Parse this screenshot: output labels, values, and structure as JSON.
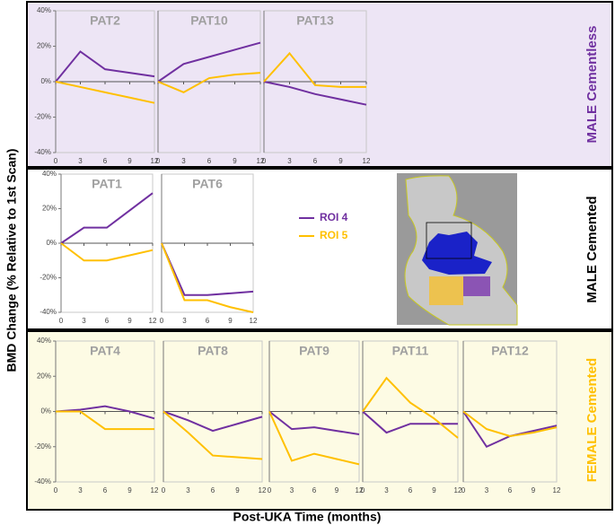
{
  "y_label": "BMD Change (% Relative to 1st Scan)",
  "x_label": "Post-UKA Time (months)",
  "sections": [
    {
      "label": "MALE Cementless",
      "color": "#7030a0"
    },
    {
      "label": "MALE Cemented",
      "color": "#000000"
    },
    {
      "label": "FEMALE Cemented",
      "color": "#ffc000"
    }
  ],
  "chart_data": [
    {
      "type": "line",
      "title": "PAT2",
      "x": [
        0,
        3,
        6,
        9,
        12
      ],
      "xlim": [
        0,
        12
      ],
      "xticks": [
        0,
        3,
        6,
        9,
        12
      ],
      "ylim": [
        -40,
        40
      ],
      "yticks": [
        {
          "value": 40,
          "label": "40%"
        },
        {
          "value": 20,
          "label": "20%"
        },
        {
          "value": 0,
          "label": "0%"
        },
        {
          "value": -20,
          "label": "-20%"
        },
        {
          "value": -40,
          "label": "-40%"
        }
      ],
      "series": [
        {
          "color": "#7030a0",
          "values": [
            0,
            17,
            7,
            5,
            3
          ]
        },
        {
          "color": "#ffc000",
          "values": [
            0,
            -3,
            -6,
            -9,
            -12
          ]
        }
      ]
    },
    {
      "type": "line",
      "title": "PAT10",
      "x": [
        0,
        3,
        6,
        9,
        12
      ],
      "xlim": [
        0,
        12
      ],
      "xticks": [
        0,
        3,
        6,
        9,
        12
      ],
      "ylim": [
        -40,
        40
      ],
      "series": [
        {
          "color": "#7030a0",
          "values": [
            0,
            10,
            14,
            18,
            22
          ]
        },
        {
          "color": "#ffc000",
          "values": [
            0,
            -6,
            2,
            4,
            5
          ]
        }
      ]
    },
    {
      "type": "line",
      "title": "PAT13",
      "x": [
        0,
        3,
        6,
        9,
        12
      ],
      "xlim": [
        0,
        12
      ],
      "xticks": [
        0,
        3,
        6,
        9,
        12
      ],
      "ylim": [
        -40,
        40
      ],
      "series": [
        {
          "color": "#7030a0",
          "values": [
            0,
            -3,
            -7,
            -10,
            -13
          ]
        },
        {
          "color": "#ffc000",
          "values": [
            0,
            16,
            -2,
            -3,
            -3
          ]
        }
      ]
    },
    {
      "type": "line",
      "title": "PAT1",
      "x": [
        0,
        3,
        6,
        9,
        12
      ],
      "xlim": [
        0,
        12
      ],
      "xticks": [
        0,
        3,
        6,
        9,
        12
      ],
      "ylim": [
        -40,
        40
      ],
      "yticks": [
        {
          "value": 40,
          "label": "40%"
        },
        {
          "value": 20,
          "label": "20%"
        },
        {
          "value": 0,
          "label": "0%"
        },
        {
          "value": -20,
          "label": "-20%"
        },
        {
          "value": -40,
          "label": "-40%"
        }
      ],
      "series": [
        {
          "color": "#7030a0",
          "values": [
            0,
            9,
            9,
            19,
            29
          ]
        },
        {
          "color": "#ffc000",
          "values": [
            0,
            -10,
            -10,
            -7,
            -4
          ]
        }
      ]
    },
    {
      "type": "line",
      "title": "PAT6",
      "x": [
        0,
        3,
        6,
        9,
        12
      ],
      "xlim": [
        0,
        12
      ],
      "xticks": [
        0,
        3,
        6,
        9,
        12
      ],
      "ylim": [
        -40,
        40
      ],
      "series": [
        {
          "name": "ROI 4",
          "color": "#7030a0",
          "values": [
            0,
            -30,
            -30,
            -29,
            -28
          ]
        },
        {
          "name": "ROI 5",
          "color": "#ffc000",
          "values": [
            0,
            -33,
            -33,
            -37,
            -40
          ]
        }
      ]
    },
    {
      "type": "line",
      "title": "PAT4",
      "x": [
        0,
        3,
        6,
        9,
        12
      ],
      "xlim": [
        0,
        12
      ],
      "xticks": [
        0,
        3,
        6,
        9,
        12
      ],
      "ylim": [
        -40,
        40
      ],
      "yticks": [
        {
          "value": 40,
          "label": "40%"
        },
        {
          "value": 20,
          "label": "20%"
        },
        {
          "value": 0,
          "label": "0%"
        },
        {
          "value": -20,
          "label": "-20%"
        },
        {
          "value": -40,
          "label": "-40%"
        }
      ],
      "series": [
        {
          "color": "#7030a0",
          "values": [
            0,
            1,
            3,
            0,
            -4
          ]
        },
        {
          "color": "#ffc000",
          "values": [
            0,
            0,
            -10,
            -10,
            -10
          ]
        }
      ]
    },
    {
      "type": "line",
      "title": "PAT8",
      "x": [
        0,
        3,
        6,
        9,
        12
      ],
      "xlim": [
        0,
        12
      ],
      "xticks": [
        0,
        3,
        6,
        9,
        12
      ],
      "ylim": [
        -40,
        40
      ],
      "series": [
        {
          "color": "#7030a0",
          "values": [
            0,
            -5,
            -11,
            -7,
            -3
          ]
        },
        {
          "color": "#ffc000",
          "values": [
            0,
            -12,
            -25,
            -26,
            -27
          ]
        }
      ]
    },
    {
      "type": "line",
      "title": "PAT9",
      "x": [
        0,
        3,
        6,
        9,
        12
      ],
      "xlim": [
        0,
        12
      ],
      "xticks": [
        0,
        3,
        6,
        9,
        12
      ],
      "ylim": [
        -40,
        40
      ],
      "series": [
        {
          "color": "#7030a0",
          "values": [
            0,
            -10,
            -9,
            -11,
            -13
          ]
        },
        {
          "color": "#ffc000",
          "values": [
            0,
            -28,
            -24,
            -27,
            -30
          ]
        }
      ]
    },
    {
      "type": "line",
      "title": "PAT11",
      "x": [
        0,
        3,
        6,
        9,
        12
      ],
      "xlim": [
        0,
        12
      ],
      "xticks": [
        0,
        3,
        6,
        9,
        12
      ],
      "ylim": [
        -40,
        40
      ],
      "series": [
        {
          "color": "#7030a0",
          "values": [
            0,
            -12,
            -7,
            -7,
            -7
          ]
        },
        {
          "color": "#ffc000",
          "values": [
            0,
            19,
            5,
            -4,
            -15
          ]
        }
      ]
    },
    {
      "type": "line",
      "title": "PAT12",
      "x": [
        0,
        3,
        6,
        9,
        12
      ],
      "xlim": [
        0,
        12
      ],
      "xticks": [
        0,
        3,
        6,
        9,
        12
      ],
      "ylim": [
        -40,
        40
      ],
      "series": [
        {
          "color": "#7030a0",
          "values": [
            0,
            -20,
            -14,
            -11,
            -8
          ]
        },
        {
          "color": "#ffc000",
          "values": [
            0,
            -10,
            -14,
            -12,
            -9
          ]
        }
      ]
    }
  ]
}
